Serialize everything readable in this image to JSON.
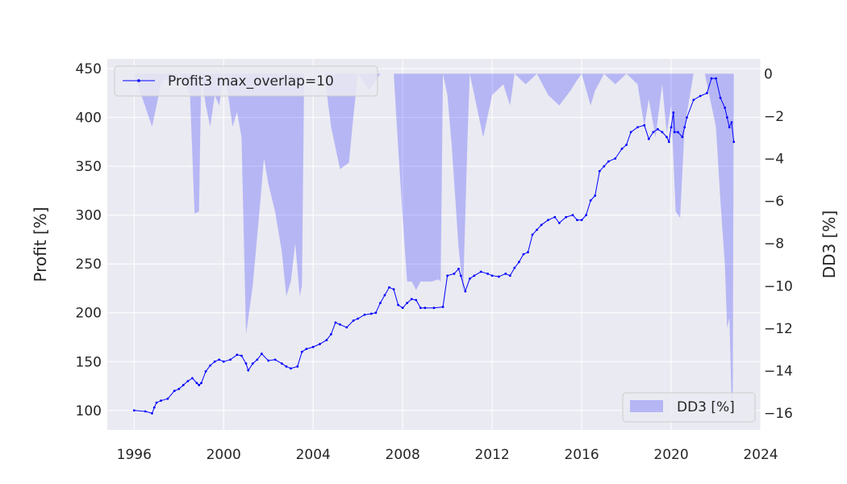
{
  "chart_data": {
    "type": "line",
    "title": "",
    "xlabel": "",
    "ylabel": "Profit [%]",
    "y2label": "DD3 [%]",
    "xlim": [
      1994.8,
      2024.0
    ],
    "ylim": [
      80,
      460
    ],
    "y2lim": [
      -16.8,
      0.7
    ],
    "xticks": [
      "1996",
      "2000",
      "2004",
      "2008",
      "2012",
      "2016",
      "2020",
      "2024"
    ],
    "yticks": [
      "100",
      "150",
      "200",
      "250",
      "300",
      "350",
      "400",
      "450"
    ],
    "y2ticks": [
      "0",
      "−2",
      "−4",
      "−6",
      "−8",
      "−10",
      "−12",
      "−14",
      "−16"
    ],
    "grid": true,
    "background": "#eaeaf2",
    "series": [
      {
        "name": "Profit3 max_overlap=10",
        "axis": "left",
        "kind": "line-with-markers",
        "color": "#0000ff",
        "x": [
          1996.0,
          1996.5,
          1996.8,
          1996.9,
          1997.0,
          1997.2,
          1997.5,
          1997.8,
          1998.0,
          1998.2,
          1998.4,
          1998.6,
          1998.8,
          1998.9,
          1999.0,
          1999.2,
          1999.4,
          1999.6,
          1999.8,
          2000.0,
          2000.3,
          2000.6,
          2000.8,
          2001.0,
          2001.1,
          2001.3,
          2001.5,
          2001.7,
          2002.0,
          2002.3,
          2002.6,
          2002.8,
          2003.0,
          2003.3,
          2003.5,
          2003.7,
          2004.0,
          2004.3,
          2004.6,
          2004.8,
          2005.0,
          2005.2,
          2005.5,
          2005.8,
          2006.0,
          2006.3,
          2006.6,
          2006.8,
          2007.0,
          2007.2,
          2007.4,
          2007.6,
          2007.8,
          2008.0,
          2008.2,
          2008.4,
          2008.6,
          2008.8,
          2009.0,
          2009.4,
          2009.8,
          2010.0,
          2010.3,
          2010.5,
          2010.6,
          2010.8,
          2011.0,
          2011.2,
          2011.5,
          2011.8,
          2012.0,
          2012.3,
          2012.6,
          2012.8,
          2013.0,
          2013.2,
          2013.4,
          2013.6,
          2013.8,
          2014.0,
          2014.2,
          2014.5,
          2014.8,
          2015.0,
          2015.3,
          2015.6,
          2015.8,
          2016.0,
          2016.2,
          2016.4,
          2016.6,
          2016.8,
          2017.0,
          2017.2,
          2017.5,
          2017.8,
          2018.0,
          2018.2,
          2018.5,
          2018.8,
          2019.0,
          2019.2,
          2019.4,
          2019.6,
          2019.8,
          2019.9,
          2020.0,
          2020.1,
          2020.15,
          2020.3,
          2020.5,
          2020.6,
          2020.7,
          2021.0,
          2021.3,
          2021.6,
          2021.8,
          2022.0,
          2022.2,
          2022.4,
          2022.5,
          2022.6,
          2022.7,
          2022.8
        ],
        "values": [
          100,
          99,
          97,
          103,
          108,
          110,
          112,
          120,
          122,
          126,
          130,
          133,
          128,
          126,
          128,
          140,
          146,
          150,
          152,
          150,
          152,
          157,
          156,
          148,
          141,
          148,
          152,
          158,
          151,
          152,
          148,
          145,
          143,
          145,
          160,
          163,
          165,
          168,
          172,
          178,
          190,
          188,
          185,
          192,
          194,
          198,
          199,
          200,
          210,
          218,
          226,
          224,
          208,
          205,
          210,
          214,
          213,
          205,
          205,
          205,
          206,
          238,
          240,
          245,
          238,
          222,
          235,
          238,
          242,
          240,
          238,
          237,
          240,
          238,
          246,
          252,
          260,
          262,
          280,
          285,
          290,
          295,
          298,
          292,
          298,
          300,
          295,
          295,
          300,
          315,
          320,
          345,
          350,
          355,
          358,
          368,
          372,
          385,
          390,
          392,
          378,
          385,
          388,
          385,
          380,
          375,
          390,
          405,
          385,
          385,
          380,
          390,
          400,
          418,
          422,
          425,
          440,
          440,
          420,
          410,
          400,
          390,
          395,
          375
        ]
      },
      {
        "name": "DD3 [%]",
        "axis": "right",
        "kind": "area",
        "color": "#0000ff",
        "x": [
          1996.0,
          1996.8,
          1997.0,
          1997.2,
          1997.4,
          1997.6,
          1997.8,
          1998.0,
          1998.3,
          1998.5,
          1998.7,
          1998.9,
          1999.0,
          1999.2,
          1999.4,
          1999.6,
          1999.8,
          2000.0,
          2000.2,
          2000.4,
          2000.6,
          2000.8,
          2001.0,
          2001.3,
          2001.6,
          2001.8,
          2002.0,
          2002.3,
          2002.6,
          2002.8,
          2003.0,
          2003.2,
          2003.4,
          2003.5,
          2003.6,
          2004.0,
          2004.5,
          2004.8,
          2005.2,
          2005.6,
          2005.8,
          2006.0,
          2006.5,
          2007.0,
          2007.6,
          2007.8,
          2008.0,
          2008.2,
          2008.4,
          2008.6,
          2008.8,
          2009.0,
          2009.3,
          2009.6,
          2009.7,
          2009.8,
          2010.0,
          2010.2,
          2010.5,
          2010.7,
          2010.9,
          2011.0,
          2011.3,
          2011.6,
          2012.0,
          2012.5,
          2012.8,
          2013.0,
          2013.5,
          2014.0,
          2014.5,
          2015.0,
          2015.5,
          2015.8,
          2016.0,
          2016.4,
          2016.6,
          2017.0,
          2017.5,
          2018.0,
          2018.5,
          2018.8,
          2019.0,
          2019.3,
          2019.6,
          2019.8,
          2020.0,
          2020.2,
          2020.4,
          2020.6,
          2021.0,
          2021.5,
          2021.8,
          2022.0,
          2022.2,
          2022.4,
          2022.5,
          2022.6,
          2022.7,
          2022.75,
          2022.8
        ],
        "values": [
          0,
          -2.5,
          -1.5,
          -0.5,
          -0.2,
          -0.5,
          -0.3,
          0,
          -0.5,
          -1.0,
          -6.6,
          -6.5,
          0,
          -1.5,
          -2.5,
          -1.0,
          -1.5,
          0,
          -1.0,
          -2.5,
          -1.8,
          -3.0,
          -12.3,
          -10.0,
          -6.5,
          -4.0,
          -5.2,
          -6.5,
          -8.4,
          -10.5,
          -9.8,
          -8.0,
          -10.5,
          -10.0,
          0,
          0,
          0,
          -2.5,
          -4.5,
          -4.2,
          -2.0,
          0,
          -0.8,
          0,
          0,
          -3.5,
          -6.8,
          -9.8,
          -9.8,
          -10.2,
          -9.8,
          -9.8,
          -9.8,
          -9.7,
          -9.8,
          0,
          -1.0,
          -3.5,
          -8.2,
          -10.3,
          -3.0,
          0,
          -1.5,
          -3.0,
          -1.0,
          -0.5,
          -1.5,
          0,
          -0.5,
          0,
          -1.0,
          -1.5,
          -0.8,
          -0.3,
          0,
          -1.5,
          -0.8,
          0,
          -0.5,
          0,
          -0.5,
          -2.5,
          -1.2,
          -3.0,
          -0.5,
          -2.8,
          -1.5,
          -6.5,
          -6.8,
          -2.5,
          0,
          0,
          -1.5,
          -2.5,
          -6.0,
          -9.0,
          -12.0,
          -11.5,
          -15.5,
          -16.2,
          0
        ]
      }
    ],
    "legends": [
      {
        "label": "Profit3 max_overlap=10",
        "placement": "upper left"
      },
      {
        "label": "DD3 [%]",
        "placement": "lower right"
      }
    ]
  }
}
